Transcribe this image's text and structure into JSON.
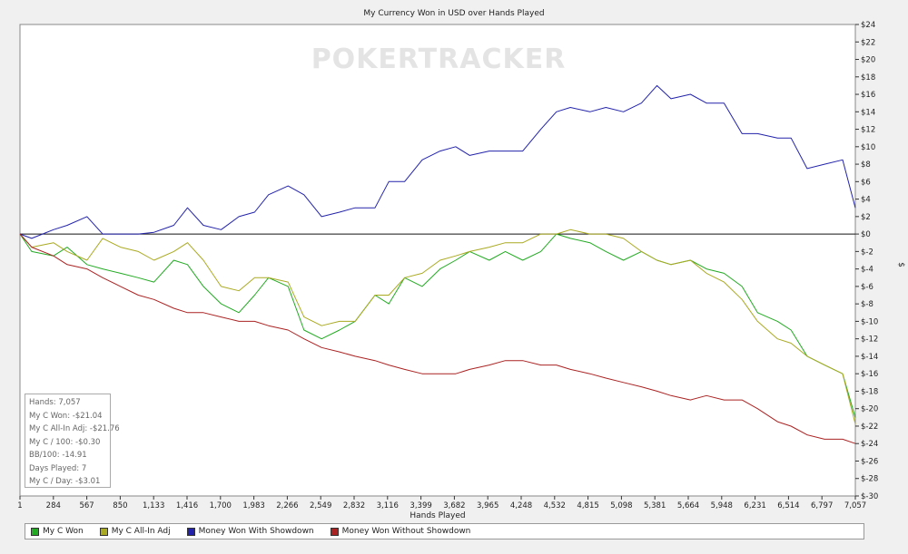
{
  "chart_data": {
    "type": "line",
    "title": "My Currency Won in USD over Hands Played",
    "watermark": "POKERTRACKER",
    "xlabel": "Hands Played",
    "ylabel": "$",
    "xlim": [
      1,
      7057
    ],
    "ylim": [
      -30,
      24
    ],
    "x_ticks": [
      "1",
      "284",
      "567",
      "850",
      "1,133",
      "1,416",
      "1,700",
      "1,983",
      "2,266",
      "2,549",
      "2,832",
      "3,116",
      "3,399",
      "3,682",
      "3,965",
      "4,248",
      "4,532",
      "4,815",
      "5,098",
      "5,381",
      "5,664",
      "5,948",
      "6,231",
      "6,514",
      "6,797",
      "7,057"
    ],
    "y_ticks": [
      "$24",
      "$22",
      "$20",
      "$18",
      "$16",
      "$14",
      "$12",
      "$10",
      "$8",
      "$6",
      "$4",
      "$2",
      "$0",
      "$-2",
      "$-4",
      "$-6",
      "$-8",
      "$-10",
      "$-12",
      "$-14",
      "$-16",
      "$-18",
      "$-20",
      "$-22",
      "$-24",
      "$-26",
      "$-28",
      "$-30"
    ],
    "y_tick_values": [
      24,
      22,
      20,
      18,
      16,
      14,
      12,
      10,
      8,
      6,
      4,
      2,
      0,
      -2,
      -4,
      -6,
      -8,
      -10,
      -12,
      -14,
      -16,
      -18,
      -20,
      -22,
      -24,
      -26,
      -28,
      -30
    ],
    "grid": false,
    "legend_placement": "bottom",
    "x": [
      1,
      100,
      284,
      400,
      567,
      700,
      850,
      1000,
      1133,
      1300,
      1416,
      1550,
      1700,
      1850,
      1983,
      2100,
      2266,
      2400,
      2549,
      2700,
      2832,
      3000,
      3116,
      3250,
      3399,
      3550,
      3682,
      3800,
      3965,
      4100,
      4248,
      4400,
      4532,
      4650,
      4815,
      4950,
      5098,
      5250,
      5381,
      5500,
      5664,
      5800,
      5948,
      6100,
      6231,
      6400,
      6514,
      6650,
      6797,
      6950,
      7057
    ],
    "series": [
      {
        "name": "My C Won",
        "color": "#22aa22",
        "values": [
          0,
          -2,
          -2.5,
          -1.5,
          -3.5,
          -4,
          -4.5,
          -5,
          -5.5,
          -3,
          -3.5,
          -6,
          -8,
          -9,
          -7,
          -5,
          -6,
          -11,
          -12,
          -11,
          -10,
          -7,
          -8,
          -5,
          -6,
          -4,
          -3,
          -2,
          -3,
          -2,
          -3,
          -2,
          0,
          -0.5,
          -1,
          -2,
          -3,
          -2,
          -3,
          -3.5,
          -3,
          -4,
          -4.5,
          -6,
          -9,
          -10,
          -11,
          -14,
          -15,
          -16,
          -21.04
        ]
      },
      {
        "name": "My C All-In Adj",
        "color": "#aaaa22",
        "values": [
          0,
          -1.5,
          -1,
          -2,
          -3,
          -0.5,
          -1.5,
          -2,
          -3,
          -2,
          -1,
          -3,
          -6,
          -6.5,
          -5,
          -5,
          -5.5,
          -9.5,
          -10.5,
          -10,
          -10,
          -7,
          -7,
          -5,
          -4.5,
          -3,
          -2.5,
          -2,
          -1.5,
          -1,
          -1,
          0,
          0,
          0.5,
          0,
          0,
          -0.5,
          -2,
          -3,
          -3.5,
          -3,
          -4.5,
          -5.5,
          -7.5,
          -10,
          -12,
          -12.5,
          -14,
          -15,
          -16,
          -21.76
        ]
      },
      {
        "name": "Money Won With Showdown",
        "color": "#2222aa",
        "values": [
          0,
          -0.5,
          0.5,
          1,
          2,
          0,
          0,
          0,
          0.2,
          1,
          3,
          1,
          0.5,
          2,
          2.5,
          4.5,
          5.5,
          4.5,
          2,
          2.5,
          3,
          3,
          6,
          6,
          8.5,
          9.5,
          10,
          9,
          9.5,
          9.5,
          9.5,
          12,
          14,
          14.5,
          14,
          14.5,
          14,
          15,
          17,
          15.5,
          16,
          15,
          15,
          11.5,
          11.5,
          11,
          11,
          7.5,
          8,
          8.5,
          3
        ]
      },
      {
        "name": "Money Won Without Showdown",
        "color": "#aa2222",
        "values": [
          0,
          -1.5,
          -2.5,
          -3.5,
          -4,
          -5,
          -6,
          -7,
          -7.5,
          -8.5,
          -9,
          -9,
          -9.5,
          -10,
          -10,
          -10.5,
          -11,
          -12,
          -13,
          -13.5,
          -14,
          -14.5,
          -15,
          -15.5,
          -16,
          -16,
          -16,
          -15.5,
          -15,
          -14.5,
          -14.5,
          -15,
          -15,
          -15.5,
          -16,
          -16.5,
          -17,
          -17.5,
          -18,
          -18.5,
          -19,
          -18.5,
          -19,
          -19,
          -20,
          -21.5,
          -22,
          -23,
          -23.5,
          -23.5,
          -24
        ]
      }
    ]
  },
  "stats": [
    "Hands: 7,057",
    "My C Won: -$21.04",
    "My C All-In Adj: -$21.76",
    "My C / 100: -$0.30",
    "BB/100: -14.91",
    "Days Played: 7",
    "My C / Day: -$3.01"
  ]
}
